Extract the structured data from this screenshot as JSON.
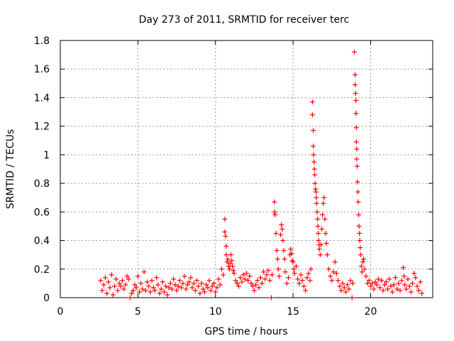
{
  "chart_data": {
    "type": "scatter",
    "title": "Day 273 of 2011, SRMTID for receiver terc",
    "xlabel": "GPS time / hours",
    "ylabel": "SRMTID / TECUs",
    "xlim": [
      0,
      24
    ],
    "ylim": [
      0,
      1.8
    ],
    "xticks": [
      0,
      5,
      10,
      15,
      20
    ],
    "yticks": [
      0,
      0.2,
      0.4,
      0.6,
      0.8,
      1,
      1.2,
      1.4,
      1.6,
      1.8
    ],
    "grid": true,
    "marker": "+",
    "color": "#ff0000",
    "series": [
      {
        "name": "SRMTID",
        "points": [
          [
            2.6,
            0.12
          ],
          [
            2.7,
            0.05
          ],
          [
            2.8,
            0.09
          ],
          [
            2.9,
            0.14
          ],
          [
            3.0,
            0.03
          ],
          [
            3.1,
            0.11
          ],
          [
            3.2,
            0.07
          ],
          [
            3.3,
            0.16
          ],
          [
            3.4,
            0.02
          ],
          [
            3.5,
            0.08
          ],
          [
            3.6,
            0.13
          ],
          [
            3.7,
            0.05
          ],
          [
            3.8,
            0.1
          ],
          [
            3.9,
            0.08
          ],
          [
            4.0,
            0.12
          ],
          [
            4.1,
            0.06
          ],
          [
            4.2,
            0.09
          ],
          [
            4.3,
            0.15
          ],
          [
            4.4,
            0.13
          ],
          [
            4.5,
            0.0
          ],
          [
            4.6,
            0.03
          ],
          [
            4.7,
            0.05
          ],
          [
            4.8,
            0.09
          ],
          [
            4.9,
            0.07
          ],
          [
            5.0,
            0.15
          ],
          [
            5.1,
            0.04
          ],
          [
            5.2,
            0.1
          ],
          [
            5.3,
            0.06
          ],
          [
            5.4,
            0.18
          ],
          [
            5.5,
            0.05
          ],
          [
            5.6,
            0.11
          ],
          [
            5.7,
            0.08
          ],
          [
            5.8,
            0.04
          ],
          [
            5.9,
            0.12
          ],
          [
            6.0,
            0.07
          ],
          [
            6.1,
            0.05
          ],
          [
            6.2,
            0.14
          ],
          [
            6.3,
            0.09
          ],
          [
            6.4,
            0.03
          ],
          [
            6.5,
            0.06
          ],
          [
            6.6,
            0.11
          ],
          [
            6.7,
            0.04
          ],
          [
            6.8,
            0.08
          ],
          [
            6.9,
            0.02
          ],
          [
            7.0,
            0.07
          ],
          [
            7.1,
            0.1
          ],
          [
            7.2,
            0.06
          ],
          [
            7.3,
            0.13
          ],
          [
            7.4,
            0.09
          ],
          [
            7.5,
            0.05
          ],
          [
            7.6,
            0.08
          ],
          [
            7.7,
            0.12
          ],
          [
            7.8,
            0.07
          ],
          [
            7.9,
            0.1
          ],
          [
            8.0,
            0.15
          ],
          [
            8.1,
            0.06
          ],
          [
            8.2,
            0.09
          ],
          [
            8.3,
            0.11
          ],
          [
            8.4,
            0.14
          ],
          [
            8.5,
            0.07
          ],
          [
            8.6,
            0.1
          ],
          [
            8.7,
            0.05
          ],
          [
            8.8,
            0.12
          ],
          [
            8.9,
            0.08
          ],
          [
            9.0,
            0.03
          ],
          [
            9.1,
            0.1
          ],
          [
            9.2,
            0.06
          ],
          [
            9.3,
            0.04
          ],
          [
            9.4,
            0.09
          ],
          [
            9.5,
            0.07
          ],
          [
            9.6,
            0.12
          ],
          [
            9.7,
            0.05
          ],
          [
            9.8,
            0.08
          ],
          [
            9.9,
            0.1
          ],
          [
            10.0,
            0.04
          ],
          [
            10.1,
            0.07
          ],
          [
            10.2,
            0.13
          ],
          [
            10.3,
            0.09
          ],
          [
            10.4,
            0.2
          ],
          [
            10.5,
            0.16
          ],
          [
            10.6,
            0.55
          ],
          [
            10.6,
            0.46
          ],
          [
            10.65,
            0.43
          ],
          [
            10.7,
            0.36
          ],
          [
            10.7,
            0.3
          ],
          [
            10.75,
            0.25
          ],
          [
            10.8,
            0.27
          ],
          [
            10.85,
            0.22
          ],
          [
            10.9,
            0.2
          ],
          [
            10.95,
            0.24
          ],
          [
            11.0,
            0.3
          ],
          [
            11.05,
            0.26
          ],
          [
            11.1,
            0.22
          ],
          [
            11.15,
            0.19
          ],
          [
            11.2,
            0.17
          ],
          [
            11.3,
            0.12
          ],
          [
            11.4,
            0.1
          ],
          [
            11.5,
            0.08
          ],
          [
            11.6,
            0.14
          ],
          [
            11.7,
            0.11
          ],
          [
            11.8,
            0.16
          ],
          [
            11.9,
            0.13
          ],
          [
            12.0,
            0.17
          ],
          [
            12.1,
            0.12
          ],
          [
            12.2,
            0.15
          ],
          [
            12.3,
            0.1
          ],
          [
            12.4,
            0.08
          ],
          [
            12.5,
            0.05
          ],
          [
            12.6,
            0.09
          ],
          [
            12.7,
            0.12
          ],
          [
            12.8,
            0.07
          ],
          [
            12.9,
            0.14
          ],
          [
            13.0,
            0.1
          ],
          [
            13.1,
            0.18
          ],
          [
            13.2,
            0.13
          ],
          [
            13.3,
            0.16
          ],
          [
            13.4,
            0.19
          ],
          [
            13.5,
            0.12
          ],
          [
            13.6,
            0.0
          ],
          [
            13.65,
            0.16
          ],
          [
            13.8,
            0.67
          ],
          [
            13.8,
            0.6
          ],
          [
            13.85,
            0.58
          ],
          [
            13.9,
            0.45
          ],
          [
            13.95,
            0.33
          ],
          [
            14.0,
            0.27
          ],
          [
            14.05,
            0.2
          ],
          [
            14.1,
            0.15
          ],
          [
            14.2,
            0.44
          ],
          [
            14.25,
            0.51
          ],
          [
            14.3,
            0.48
          ],
          [
            14.35,
            0.4
          ],
          [
            14.4,
            0.33
          ],
          [
            14.45,
            0.27
          ],
          [
            14.5,
            0.18
          ],
          [
            14.6,
            0.1
          ],
          [
            14.7,
            0.14
          ],
          [
            14.8,
            0.3
          ],
          [
            14.85,
            0.34
          ],
          [
            14.9,
            0.31
          ],
          [
            14.95,
            0.26
          ],
          [
            15.0,
            0.25
          ],
          [
            15.05,
            0.2
          ],
          [
            15.1,
            0.17
          ],
          [
            15.2,
            0.22
          ],
          [
            15.3,
            0.13
          ],
          [
            15.4,
            0.1
          ],
          [
            15.5,
            0.16
          ],
          [
            15.6,
            0.12
          ],
          [
            15.7,
            0.08
          ],
          [
            15.8,
            0.05
          ],
          [
            15.9,
            0.14
          ],
          [
            16.0,
            0.17
          ],
          [
            16.1,
            0.12
          ],
          [
            16.15,
            0.2
          ],
          [
            16.25,
            1.37
          ],
          [
            16.25,
            1.28
          ],
          [
            16.3,
            1.17
          ],
          [
            16.3,
            1.06
          ],
          [
            16.32,
            1.0
          ],
          [
            16.35,
            0.95
          ],
          [
            16.38,
            0.9
          ],
          [
            16.4,
            0.86
          ],
          [
            16.42,
            0.8
          ],
          [
            16.45,
            0.76
          ],
          [
            16.48,
            0.74
          ],
          [
            16.5,
            0.7
          ],
          [
            16.52,
            0.66
          ],
          [
            16.55,
            0.6
          ],
          [
            16.58,
            0.55
          ],
          [
            16.6,
            0.5
          ],
          [
            16.62,
            0.45
          ],
          [
            16.65,
            0.4
          ],
          [
            16.68,
            0.37
          ],
          [
            16.7,
            0.34
          ],
          [
            16.75,
            0.3
          ],
          [
            16.8,
            0.37
          ],
          [
            16.85,
            0.48
          ],
          [
            16.9,
            0.58
          ],
          [
            16.95,
            0.66
          ],
          [
            17.0,
            0.7
          ],
          [
            17.05,
            0.55
          ],
          [
            17.1,
            0.45
          ],
          [
            17.15,
            0.38
          ],
          [
            17.2,
            0.3
          ],
          [
            17.3,
            0.2
          ],
          [
            17.4,
            0.15
          ],
          [
            17.5,
            0.12
          ],
          [
            17.6,
            0.18
          ],
          [
            17.7,
            0.25
          ],
          [
            17.8,
            0.17
          ],
          [
            17.9,
            0.12
          ],
          [
            18.0,
            0.08
          ],
          [
            18.1,
            0.05
          ],
          [
            18.2,
            0.1
          ],
          [
            18.3,
            0.07
          ],
          [
            18.4,
            0.04
          ],
          [
            18.5,
            0.09
          ],
          [
            18.6,
            0.06
          ],
          [
            18.7,
            0.12
          ],
          [
            18.8,
            0.0
          ],
          [
            18.85,
            0.1
          ],
          [
            18.95,
            1.72
          ],
          [
            19.0,
            1.56
          ],
          [
            19.0,
            1.49
          ],
          [
            19.03,
            1.43
          ],
          [
            19.05,
            1.38
          ],
          [
            19.05,
            1.29
          ],
          [
            19.08,
            1.19
          ],
          [
            19.08,
            1.09
          ],
          [
            19.1,
            1.04
          ],
          [
            19.1,
            0.97
          ],
          [
            19.13,
            0.92
          ],
          [
            19.15,
            0.81
          ],
          [
            19.18,
            0.74
          ],
          [
            19.2,
            0.67
          ],
          [
            19.23,
            0.58
          ],
          [
            19.25,
            0.5
          ],
          [
            19.28,
            0.45
          ],
          [
            19.3,
            0.4
          ],
          [
            19.33,
            0.35
          ],
          [
            19.36,
            0.3
          ],
          [
            19.4,
            0.22
          ],
          [
            19.45,
            0.18
          ],
          [
            19.5,
            0.25
          ],
          [
            19.55,
            0.27
          ],
          [
            19.6,
            0.2
          ],
          [
            19.7,
            0.15
          ],
          [
            19.8,
            0.1
          ],
          [
            19.9,
            0.12
          ],
          [
            20.0,
            0.08
          ],
          [
            20.1,
            0.1
          ],
          [
            20.2,
            0.06
          ],
          [
            20.3,
            0.11
          ],
          [
            20.4,
            0.09
          ],
          [
            20.5,
            0.13
          ],
          [
            20.6,
            0.07
          ],
          [
            20.7,
            0.12
          ],
          [
            20.8,
            0.05
          ],
          [
            20.9,
            0.09
          ],
          [
            21.0,
            0.11
          ],
          [
            21.1,
            0.06
          ],
          [
            21.2,
            0.13
          ],
          [
            21.3,
            0.08
          ],
          [
            21.4,
            0.04
          ],
          [
            21.5,
            0.09
          ],
          [
            21.6,
            0.14
          ],
          [
            21.7,
            0.06
          ],
          [
            21.8,
            0.1
          ],
          [
            21.9,
            0.05
          ],
          [
            22.0,
            0.12
          ],
          [
            22.1,
            0.21
          ],
          [
            22.15,
            0.15
          ],
          [
            22.2,
            0.09
          ],
          [
            22.3,
            0.06
          ],
          [
            22.4,
            0.13
          ],
          [
            22.5,
            0.08
          ],
          [
            22.6,
            0.04
          ],
          [
            22.7,
            0.1
          ],
          [
            22.8,
            0.17
          ],
          [
            22.9,
            0.14
          ],
          [
            23.0,
            0.08
          ],
          [
            23.1,
            0.05
          ],
          [
            23.2,
            0.11
          ],
          [
            23.3,
            0.03
          ]
        ]
      }
    ]
  }
}
